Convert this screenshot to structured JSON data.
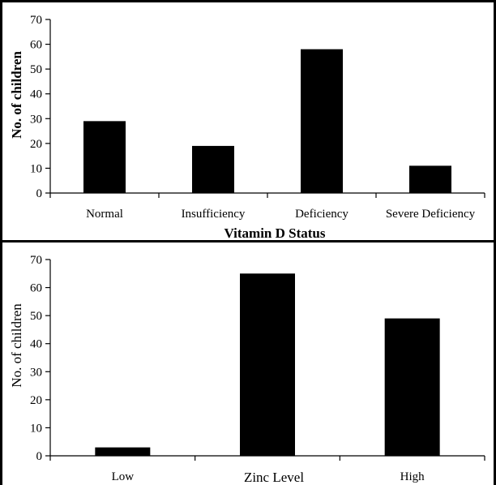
{
  "chart_data": [
    {
      "type": "bar",
      "categories": [
        "Normal",
        "Insufficiency",
        "Deficiency",
        "Severe Deficiency"
      ],
      "values": [
        29,
        19,
        58,
        11
      ],
      "xlabel": "Vitamin D Status",
      "ylabel": "No. of children",
      "ylim": [
        0,
        70
      ],
      "yticks": [
        0,
        10,
        20,
        30,
        40,
        50,
        60,
        70
      ],
      "bar_color": "#000000",
      "grid": false
    },
    {
      "type": "bar",
      "categories": [
        "Low",
        "",
        "High"
      ],
      "values": [
        3,
        65,
        49
      ],
      "xlabel": "Zinc Level",
      "ylabel": "No. of children",
      "ylim": [
        0,
        70
      ],
      "yticks": [
        0,
        10,
        20,
        30,
        40,
        50,
        60,
        70
      ],
      "bar_color": "#000000",
      "grid": false
    }
  ]
}
